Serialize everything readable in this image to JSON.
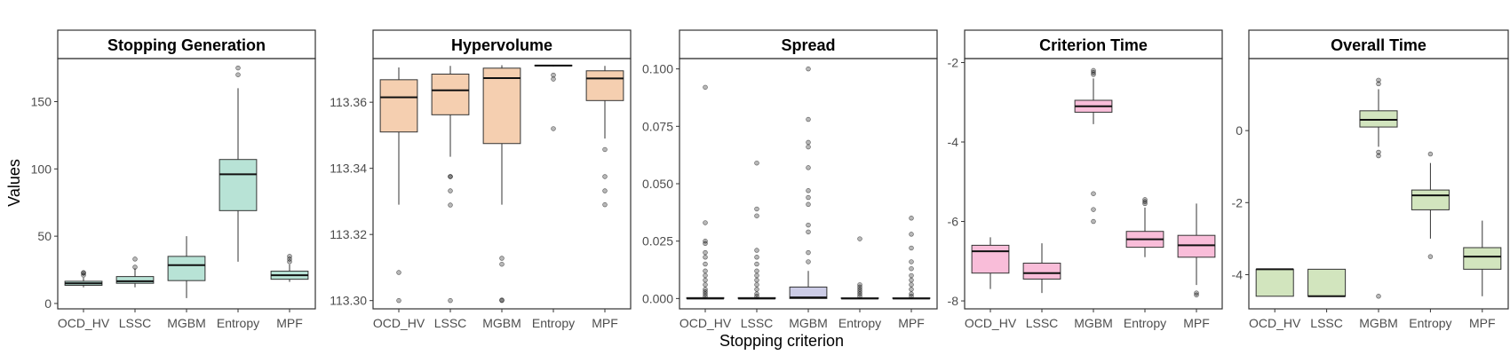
{
  "figure": {
    "ylabel": "Values",
    "xlabel": "Stopping criterion"
  },
  "chart_data": [
    {
      "type": "box",
      "title": "Stopping Generation",
      "categories": [
        "OCD_HV",
        "LSSC",
        "MGBM",
        "Entropy",
        "MPF"
      ],
      "fill": "#b8e3d6",
      "ylim": [
        -4,
        182
      ],
      "yticks": [
        0,
        50,
        100,
        150
      ],
      "ytick_labels": [
        "0",
        "50",
        "100",
        "150"
      ],
      "boxes": [
        {
          "lo": 12,
          "q1": 13.5,
          "median": 15,
          "q3": 16.5,
          "hi": 19,
          "outliers": [
            21,
            22.5,
            23
          ]
        },
        {
          "lo": 12,
          "q1": 15,
          "median": 16.5,
          "q3": 20,
          "hi": 26,
          "outliers": [
            27,
            33
          ]
        },
        {
          "lo": 4,
          "q1": 17,
          "median": 28.5,
          "q3": 35,
          "hi": 50,
          "outliers": []
        },
        {
          "lo": 31,
          "q1": 69,
          "median": 96,
          "q3": 107,
          "hi": 160,
          "outliers": [
            170,
            175
          ]
        },
        {
          "lo": 16,
          "q1": 18,
          "median": 21,
          "q3": 24,
          "hi": 29,
          "outliers": [
            31,
            33,
            35
          ]
        }
      ]
    },
    {
      "type": "box",
      "title": "Hypervolume",
      "categories": [
        "OCD_HV",
        "LSSC",
        "MGBM",
        "Entropy",
        "MPF"
      ],
      "fill": "#f5cfb0",
      "ylim": [
        113.2975,
        113.3732
      ],
      "yticks": [
        113.3,
        113.32,
        113.34,
        113.36
      ],
      "ytick_labels": [
        "113.30",
        "113.32",
        "113.34",
        "113.36"
      ],
      "boxes": [
        {
          "lo": 113.329,
          "q1": 113.351,
          "median": 113.3615,
          "q3": 113.3668,
          "hi": 113.3705,
          "outliers": [
            113.3085,
            113.3
          ]
        },
        {
          "lo": 113.3435,
          "q1": 113.3562,
          "median": 113.3636,
          "q3": 113.3685,
          "hi": 113.371,
          "outliers": [
            113.3375,
            113.3375,
            113.3332,
            113.3289,
            113.3
          ]
        },
        {
          "lo": 113.329,
          "q1": 113.3475,
          "median": 113.3673,
          "q3": 113.3703,
          "hi": 113.3712,
          "outliers": [
            113.3128,
            113.311,
            113.3002,
            113.3
          ]
        },
        {
          "lo": 113.3708,
          "q1": 113.371,
          "median": 113.3711,
          "q3": 113.3712,
          "hi": 113.3713,
          "outliers": [
            113.3682,
            113.367,
            113.352
          ]
        },
        {
          "lo": 113.349,
          "q1": 113.3605,
          "median": 113.3672,
          "q3": 113.3695,
          "hi": 113.371,
          "outliers": [
            113.3457,
            113.3375,
            113.3332,
            113.329
          ]
        }
      ]
    },
    {
      "type": "box",
      "title": "Spread",
      "categories": [
        "OCD_HV",
        "LSSC",
        "MGBM",
        "Entropy",
        "MPF"
      ],
      "fill": "#cccce6",
      "ylim": [
        -0.0045,
        0.1045
      ],
      "yticks": [
        0.0,
        0.025,
        0.05,
        0.075,
        0.1
      ],
      "ytick_labels": [
        "0.000",
        "0.025",
        "0.050",
        "0.075",
        "0.100"
      ],
      "boxes": [
        {
          "lo": 0,
          "q1": 0,
          "median": 0,
          "q3": 0.0004,
          "hi": 0.0008,
          "outliers": [
            0.001,
            0.002,
            0.003,
            0.004,
            0.006,
            0.008,
            0.01,
            0.012,
            0.015,
            0.018,
            0.02,
            0.024,
            0.025,
            0.033,
            0.092
          ]
        },
        {
          "lo": 0,
          "q1": 0,
          "median": 0,
          "q3": 0.0004,
          "hi": 0.0008,
          "outliers": [
            0.001,
            0.002,
            0.004,
            0.006,
            0.008,
            0.01,
            0.012,
            0.015,
            0.018,
            0.021,
            0.036,
            0.039,
            0.059
          ]
        },
        {
          "lo": 0,
          "q1": 0,
          "median": 0.0005,
          "q3": 0.005,
          "hi": 0.012,
          "outliers": [
            0.016,
            0.02,
            0.029,
            0.032,
            0.041,
            0.044,
            0.047,
            0.057,
            0.066,
            0.068,
            0.078,
            0.1
          ]
        },
        {
          "lo": 0,
          "q1": 0,
          "median": 0,
          "q3": 0.0003,
          "hi": 0.0006,
          "outliers": [
            0.001,
            0.002,
            0.003,
            0.004,
            0.005,
            0.006,
            0.026
          ]
        },
        {
          "lo": 0,
          "q1": 0,
          "median": 0,
          "q3": 0.0003,
          "hi": 0.0006,
          "outliers": [
            0.001,
            0.002,
            0.004,
            0.006,
            0.008,
            0.01,
            0.013,
            0.016,
            0.022,
            0.028,
            0.035
          ]
        }
      ]
    },
    {
      "type": "box",
      "title": "Criterion Time",
      "categories": [
        "OCD_HV",
        "LSSC",
        "MGBM",
        "Entropy",
        "MPF"
      ],
      "fill": "#f9bdd9",
      "ylim": [
        -8.2,
        -1.9
      ],
      "yticks": [
        -8,
        -6,
        -4,
        -2
      ],
      "ytick_labels": [
        "-8",
        "-6",
        "-4",
        "-2"
      ],
      "boxes": [
        {
          "lo": -7.7,
          "q1": -7.3,
          "median": -6.75,
          "q3": -6.6,
          "hi": -6.4,
          "outliers": []
        },
        {
          "lo": -7.8,
          "q1": -7.45,
          "median": -7.3,
          "q3": -7.05,
          "hi": -6.55,
          "outliers": []
        },
        {
          "lo": -3.55,
          "q1": -3.25,
          "median": -3.1,
          "q3": -2.95,
          "hi": -2.4,
          "outliers": [
            -2.2,
            -2.25,
            -2.3,
            -5.3,
            -5.7,
            -6.0
          ]
        },
        {
          "lo": -6.9,
          "q1": -6.65,
          "median": -6.45,
          "q3": -6.25,
          "hi": -5.65,
          "outliers": [
            -5.45,
            -5.5,
            -5.55
          ]
        },
        {
          "lo": -7.6,
          "q1": -6.9,
          "median": -6.6,
          "q3": -6.35,
          "hi": -5.55,
          "outliers": [
            -7.8,
            -7.85
          ]
        }
      ]
    },
    {
      "type": "box",
      "title": "Overall Time",
      "categories": [
        "OCD_HV",
        "LSSC",
        "MGBM",
        "Entropy",
        "MPF"
      ],
      "fill": "#d2e5be",
      "ylim": [
        -4.95,
        2.0
      ],
      "yticks": [
        -4,
        -2,
        0
      ],
      "ytick_labels": [
        "-4",
        "-2",
        "0"
      ],
      "boxes": [
        {
          "lo": -4.6,
          "q1": -4.6,
          "median": -3.85,
          "q3": -3.85,
          "hi": -3.85,
          "outliers": []
        },
        {
          "lo": -4.6,
          "q1": -4.6,
          "median": -4.6,
          "q3": -3.85,
          "hi": -3.85,
          "outliers": []
        },
        {
          "lo": -0.45,
          "q1": 0.1,
          "median": 0.3,
          "q3": 0.55,
          "hi": 1.15,
          "outliers": [
            1.4,
            1.3,
            -0.6,
            -0.7,
            -4.6
          ]
        },
        {
          "lo": -3.0,
          "q1": -2.2,
          "median": -1.8,
          "q3": -1.65,
          "hi": -0.9,
          "outliers": [
            -0.65,
            -3.5
          ]
        },
        {
          "lo": -4.6,
          "q1": -3.85,
          "median": -3.5,
          "q3": -3.25,
          "hi": -2.5,
          "outliers": []
        }
      ]
    }
  ]
}
